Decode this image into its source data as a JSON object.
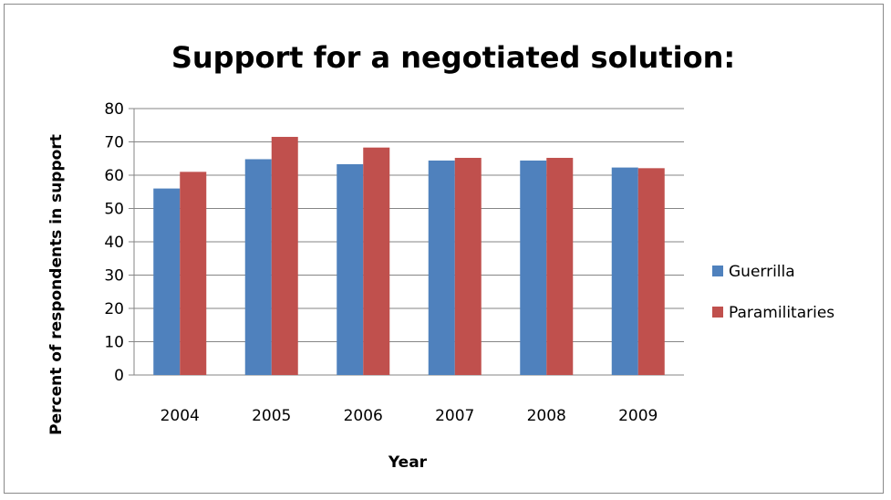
{
  "chart_data": {
    "type": "bar",
    "title": "Support for a negotiated solution:",
    "xlabel": "Year",
    "ylabel": "Percent of respondents in support",
    "categories": [
      "2004",
      "2005",
      "2006",
      "2007",
      "2008",
      "2009"
    ],
    "series": [
      {
        "name": "Guerrilla",
        "color": "#4f81bd",
        "values": [
          56,
          64.8,
          63.3,
          64.4,
          64.4,
          62.3
        ]
      },
      {
        "name": "Paramilitaries",
        "color": "#c0504d",
        "values": [
          61,
          71.5,
          68.3,
          65.2,
          65.2,
          62.1
        ]
      }
    ],
    "ylim": [
      0,
      80
    ],
    "yticks": [
      "0",
      "10",
      "20",
      "30",
      "40",
      "50",
      "60",
      "70",
      "80"
    ],
    "grid": true,
    "legend_position": "right"
  }
}
